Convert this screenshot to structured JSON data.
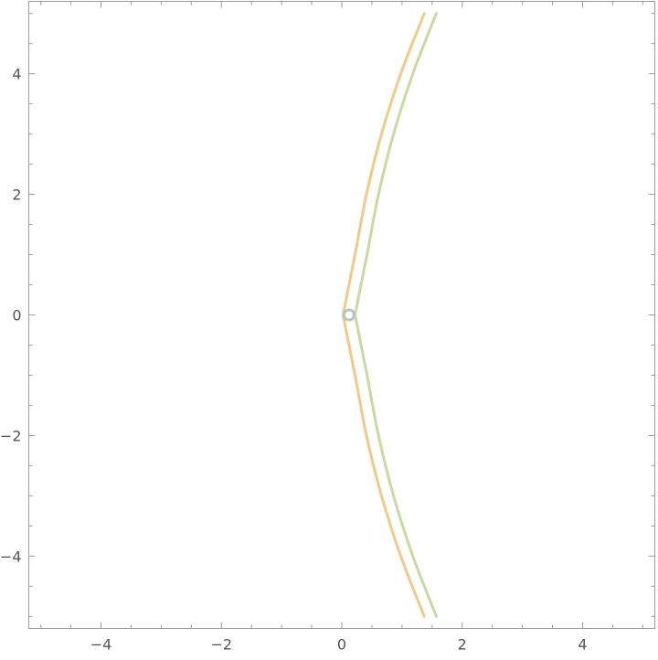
{
  "chart_data": {
    "type": "line",
    "title": "",
    "xlabel": "",
    "ylabel": "",
    "xlim": [
      -5.2,
      5.2
    ],
    "ylim": [
      -5.2,
      5.2
    ],
    "grid": false,
    "x_ticks": [
      {
        "value": -4,
        "label": "−4"
      },
      {
        "value": -2,
        "label": "−2"
      },
      {
        "value": 0,
        "label": "0"
      },
      {
        "value": 2,
        "label": "2"
      },
      {
        "value": 4,
        "label": "4"
      }
    ],
    "y_ticks": [
      {
        "value": -4,
        "label": "−4"
      },
      {
        "value": -2,
        "label": "−2"
      },
      {
        "value": 0,
        "label": "0"
      },
      {
        "value": 2,
        "label": "2"
      },
      {
        "value": 4,
        "label": "4"
      }
    ],
    "series": [
      {
        "color": "#f2c98a",
        "x": [
          1.37,
          0.98,
          0.66,
          0.41,
          0.22,
          0.1,
          0.04,
          0.02,
          0.04,
          0.1,
          0.22,
          0.41,
          0.66,
          0.98,
          1.37
        ],
        "y": [
          -5,
          -4,
          -3,
          -2,
          -1,
          -0.4,
          -0.1,
          0,
          0.1,
          0.4,
          1,
          2,
          3,
          4,
          5
        ]
      },
      {
        "color": "#c5dca0",
        "x": [
          1.57,
          1.18,
          0.86,
          0.61,
          0.42,
          0.3,
          0.24,
          0.22,
          0.24,
          0.3,
          0.42,
          0.61,
          0.86,
          1.18,
          1.57
        ],
        "y": [
          -5,
          -4,
          -3,
          -2,
          -1,
          -0.4,
          -0.1,
          0,
          0.1,
          0.4,
          1,
          2,
          3,
          4,
          5
        ]
      }
    ],
    "points": [
      {
        "x": 0.12,
        "y": 0,
        "color": "#b8c4cc"
      }
    ]
  }
}
